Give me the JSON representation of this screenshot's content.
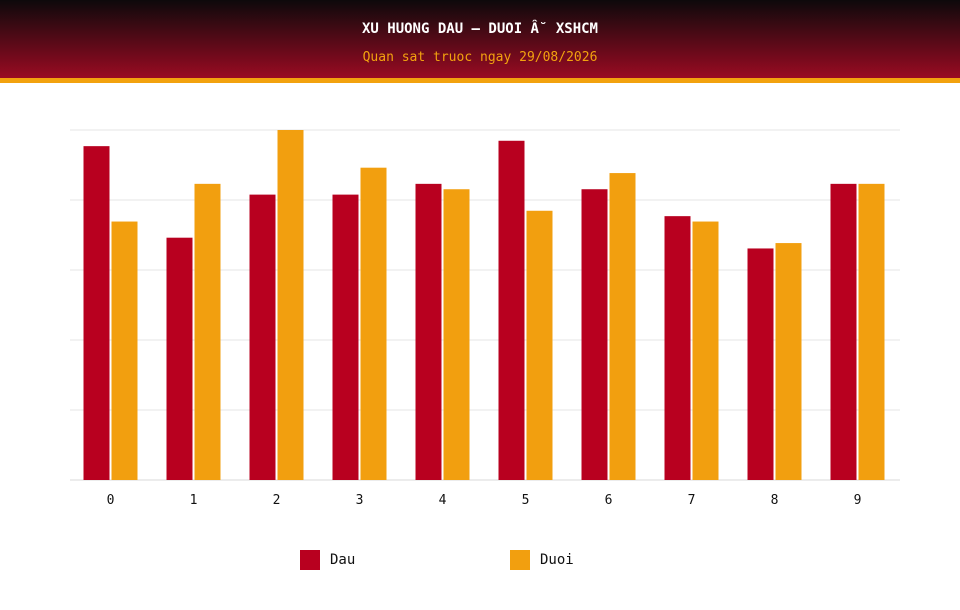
{
  "header": {
    "title": "XU HUONG DAU – DUOI Â˘ XSHCM",
    "subtitle": "Quan sat truoc ngay 29/08/2026"
  },
  "colors": {
    "dau": "#b8001f",
    "duoi": "#f29f0f",
    "grid": "#e6e6e6",
    "header_accent": "#f2a20f"
  },
  "legend": [
    {
      "label": "Dau",
      "color": "#b8001f"
    },
    {
      "label": "Duoi",
      "color": "#f29f0f"
    }
  ],
  "chart_data": {
    "type": "bar",
    "title": "XU HUONG DAU – DUOI Â˘ XSHCM",
    "subtitle": "Quan sat truoc ngay 29/08/2026",
    "categories": [
      "0",
      "1",
      "2",
      "3",
      "4",
      "5",
      "6",
      "7",
      "8",
      "9"
    ],
    "series": [
      {
        "name": "Dau",
        "values": [
          62,
          45,
          53,
          53,
          55,
          63,
          54,
          49,
          43,
          55
        ]
      },
      {
        "name": "Duoi",
        "values": [
          48,
          55,
          65,
          58,
          54,
          50,
          57,
          48,
          44,
          55
        ]
      }
    ],
    "ylim": [
      0,
      65
    ],
    "grid": true,
    "legend_position": "bottom"
  }
}
